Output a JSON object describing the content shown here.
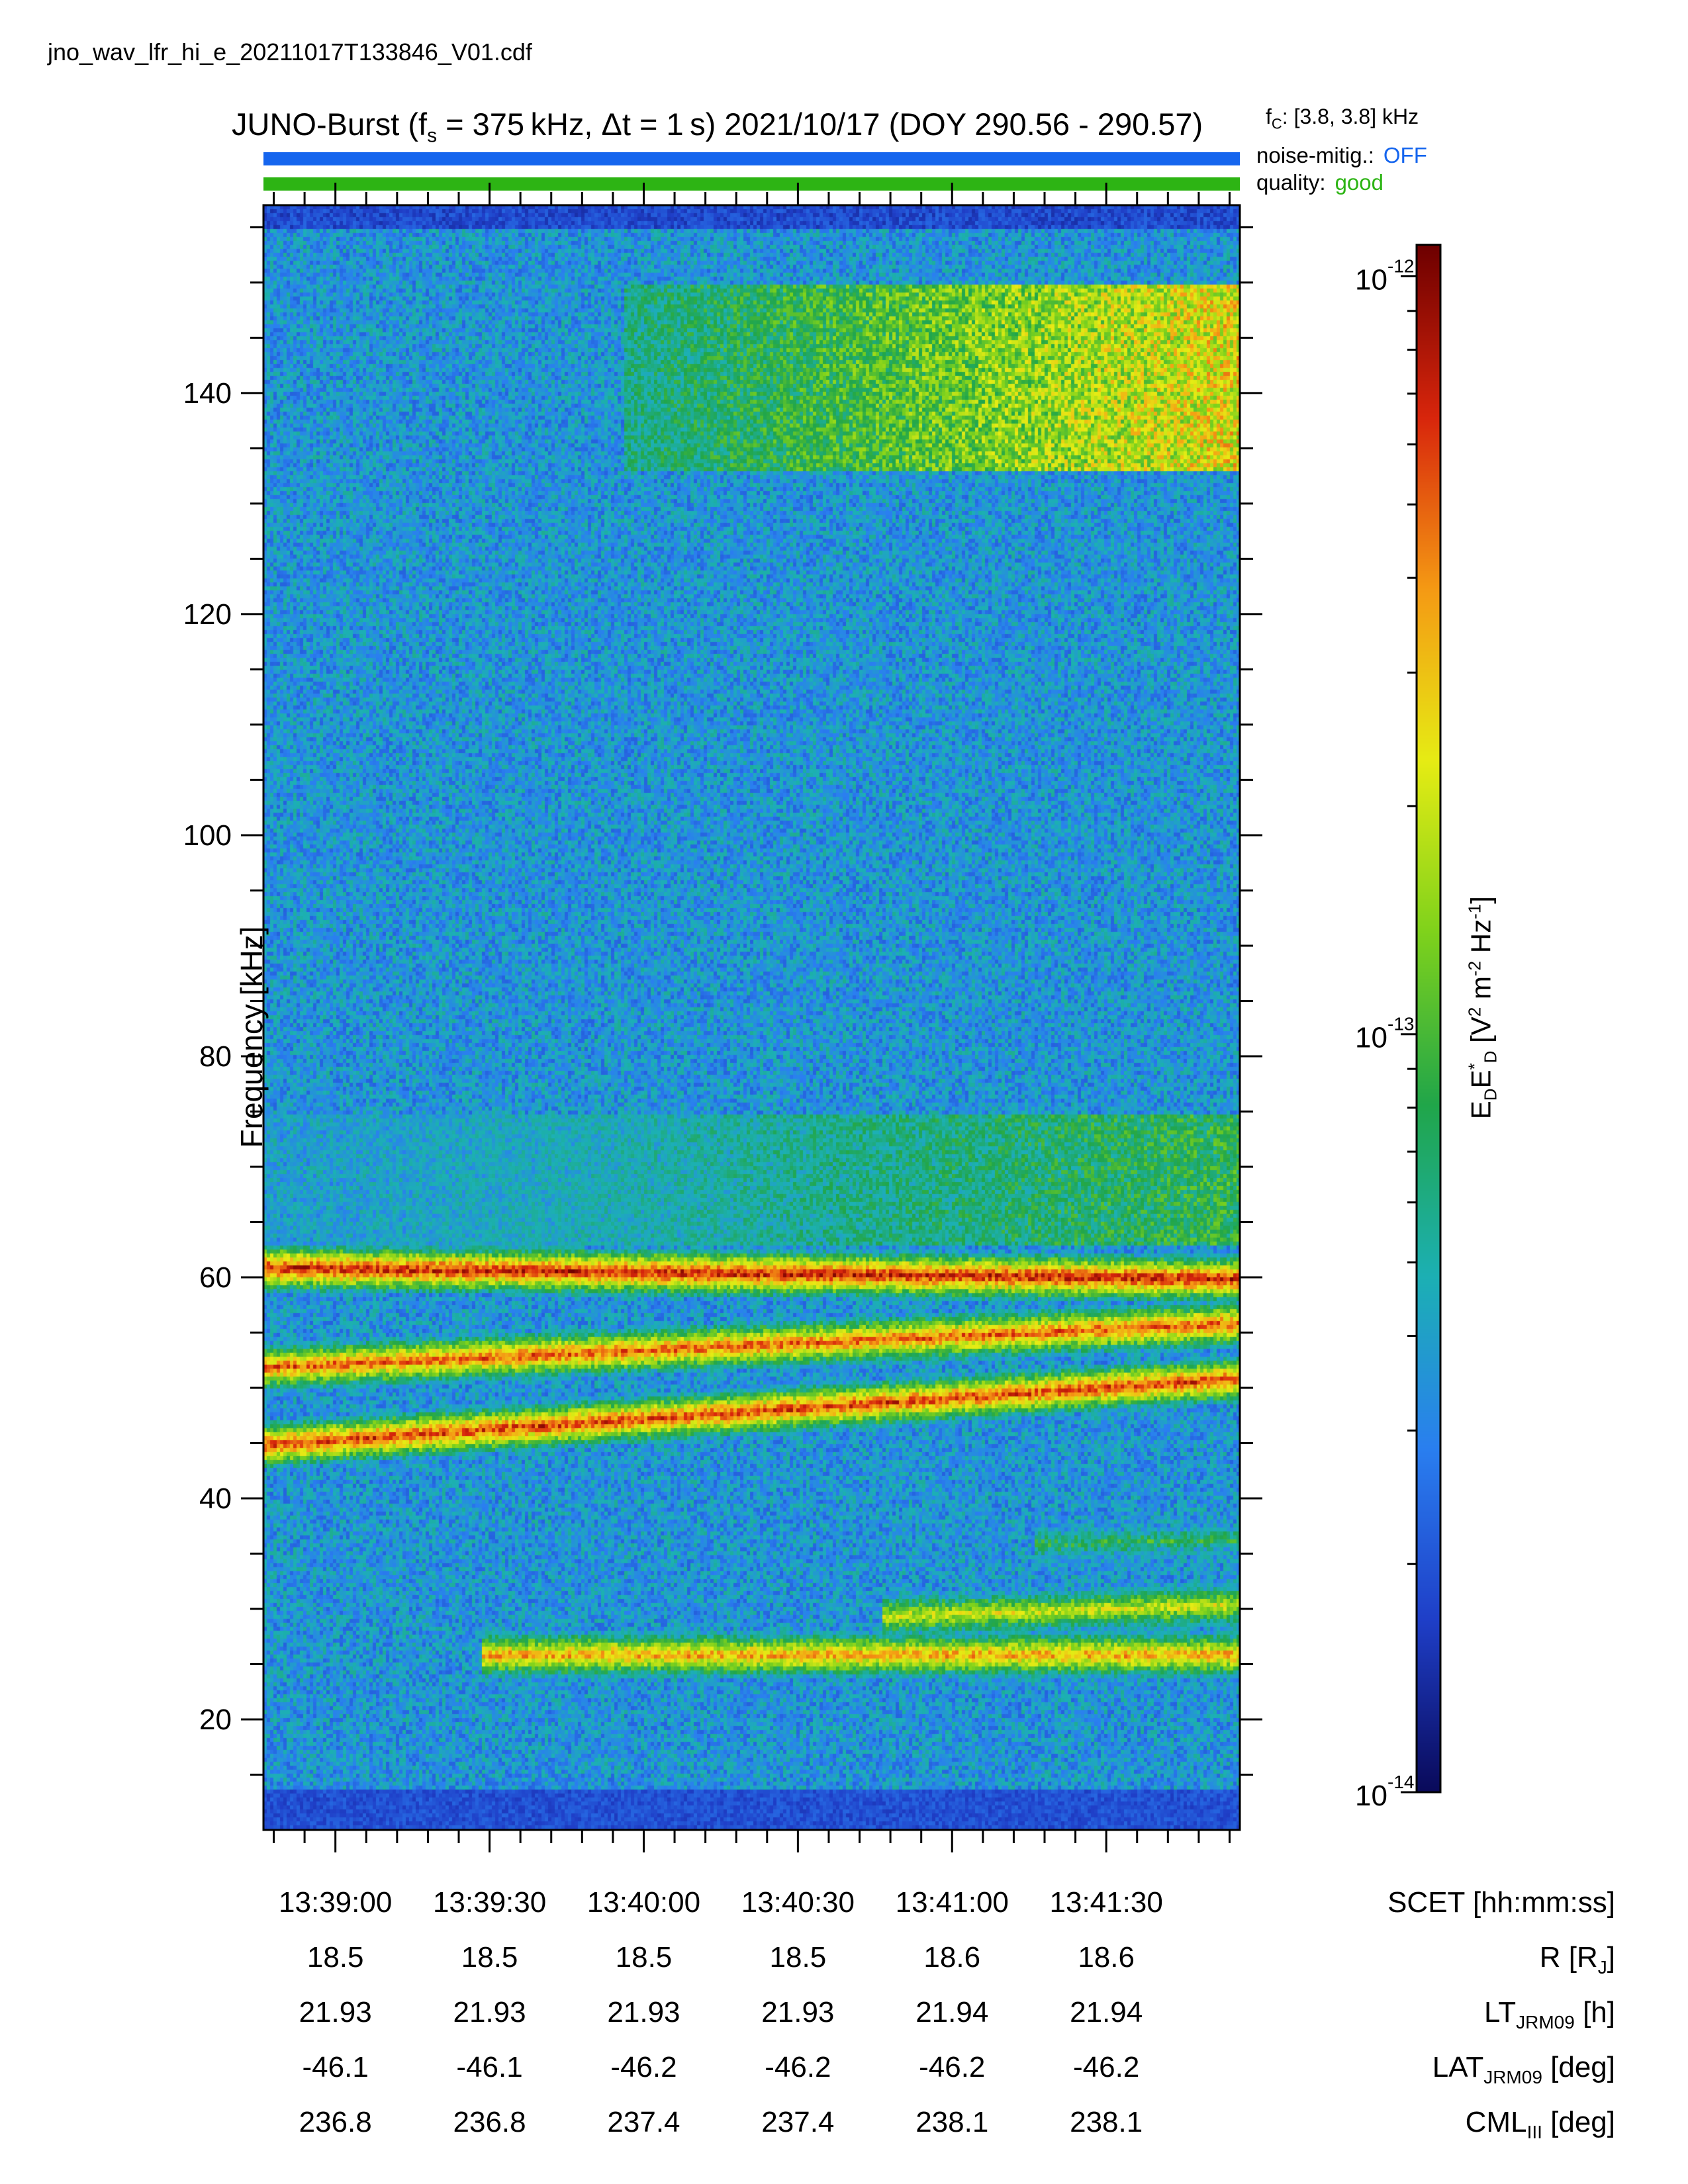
{
  "filename": "jno_wav_lfr_hi_e_20211017T133846_V01.cdf",
  "title": {
    "prefix": "JUNO-Burst (f",
    "sub": "s",
    "main": " = 375 kHz, Δt = 1 s)  2021/10/17 (DOY 290.56 - 290.57)"
  },
  "fc": {
    "prefix": "f",
    "sub": "C",
    "value": ": [3.8, 3.8] kHz"
  },
  "status": {
    "noise_label": "noise-mitig.:",
    "noise_value": "OFF",
    "noise_color": "#1565ee",
    "quality_label": "quality:",
    "quality_value": "good",
    "quality_color": "#2db414"
  },
  "chart_data": {
    "type": "heatmap",
    "ylabel": "Frequency [kHz]",
    "ylim": [
      10,
      157
    ],
    "y_ticks": [
      "20",
      "40",
      "60",
      "80",
      "100",
      "120",
      "140"
    ],
    "x_ticks": [
      "13:39:00",
      "13:39:30",
      "13:40:00",
      "13:40:30",
      "13:41:00",
      "13:41:30"
    ],
    "x_tick_seconds": [
      14,
      44,
      74,
      104,
      134,
      164
    ],
    "xlim_seconds": [
      0,
      190
    ],
    "colorbar": {
      "label_main": "E",
      "label_text": "E_D E_D* [V² m⁻² Hz⁻¹]",
      "range": [
        1e-14,
        1.1e-12
      ],
      "scale": "log",
      "ticks": [
        "10",
        "10",
        "10"
      ],
      "tick_exponents": [
        "-12",
        "-13",
        "-14"
      ],
      "tick_values": [
        1e-12,
        1e-13,
        1e-14
      ],
      "colors": [
        "#0a0a5a",
        "#1f3fc8",
        "#2a7ff0",
        "#1cb0b4",
        "#21a64a",
        "#7fd21c",
        "#e6ec14",
        "#f59a14",
        "#d8260c",
        "#6e0000"
      ]
    },
    "features": [
      {
        "name": "band",
        "y_start": 61,
        "y_end": 60,
        "t_start": 0,
        "t_end": 190,
        "intensity": 0.92
      },
      {
        "name": "band",
        "y_start": 52,
        "y_end": 56,
        "t_start": 0,
        "t_end": 190,
        "intensity": 0.85
      },
      {
        "name": "band",
        "y_start": 45,
        "y_end": 51,
        "t_start": 0,
        "t_end": 190,
        "intensity": 0.88
      },
      {
        "name": "band",
        "y_start": 26,
        "y_end": 26,
        "t_start": 42,
        "t_end": 190,
        "intensity": 0.78
      },
      {
        "name": "band",
        "y_start": 29.5,
        "y_end": 30.5,
        "t_start": 120,
        "t_end": 190,
        "intensity": 0.65
      },
      {
        "name": "band",
        "y_start": 36,
        "y_end": 36.5,
        "t_start": 150,
        "t_end": 190,
        "intensity": 0.45
      },
      {
        "name": "patch",
        "y_min": 133,
        "y_max": 150,
        "t_start": 70,
        "t_end": 190,
        "intensity": 0.75
      },
      {
        "name": "patch",
        "y_min": 63,
        "y_max": 75,
        "t_start": 0,
        "t_end": 190,
        "intensity": 0.5
      }
    ]
  },
  "ephemeris": {
    "rows": [
      {
        "label_main": "SCET [hh:mm:ss]",
        "label_sub": "",
        "label_tail": "",
        "values": [
          "13:39:00",
          "13:39:30",
          "13:40:00",
          "13:40:30",
          "13:41:00",
          "13:41:30"
        ]
      },
      {
        "label_main": "R [R",
        "label_sub": "J",
        "label_tail": "]",
        "values": [
          "18.5",
          "18.5",
          "18.5",
          "18.5",
          "18.6",
          "18.6"
        ]
      },
      {
        "label_main": "LT",
        "label_sub": "JRM09",
        "label_tail": " [h]",
        "values": [
          "21.93",
          "21.93",
          "21.93",
          "21.93",
          "21.94",
          "21.94"
        ]
      },
      {
        "label_main": "LAT",
        "label_sub": "JRM09",
        "label_tail": " [deg]",
        "values": [
          "-46.1",
          "-46.1",
          "-46.2",
          "-46.2",
          "-46.2",
          "-46.2"
        ]
      },
      {
        "label_main": "CML",
        "label_sub": "III",
        "label_tail": " [deg]",
        "values": [
          "236.8",
          "236.8",
          "237.4",
          "237.4",
          "238.1",
          "238.1"
        ]
      }
    ]
  }
}
